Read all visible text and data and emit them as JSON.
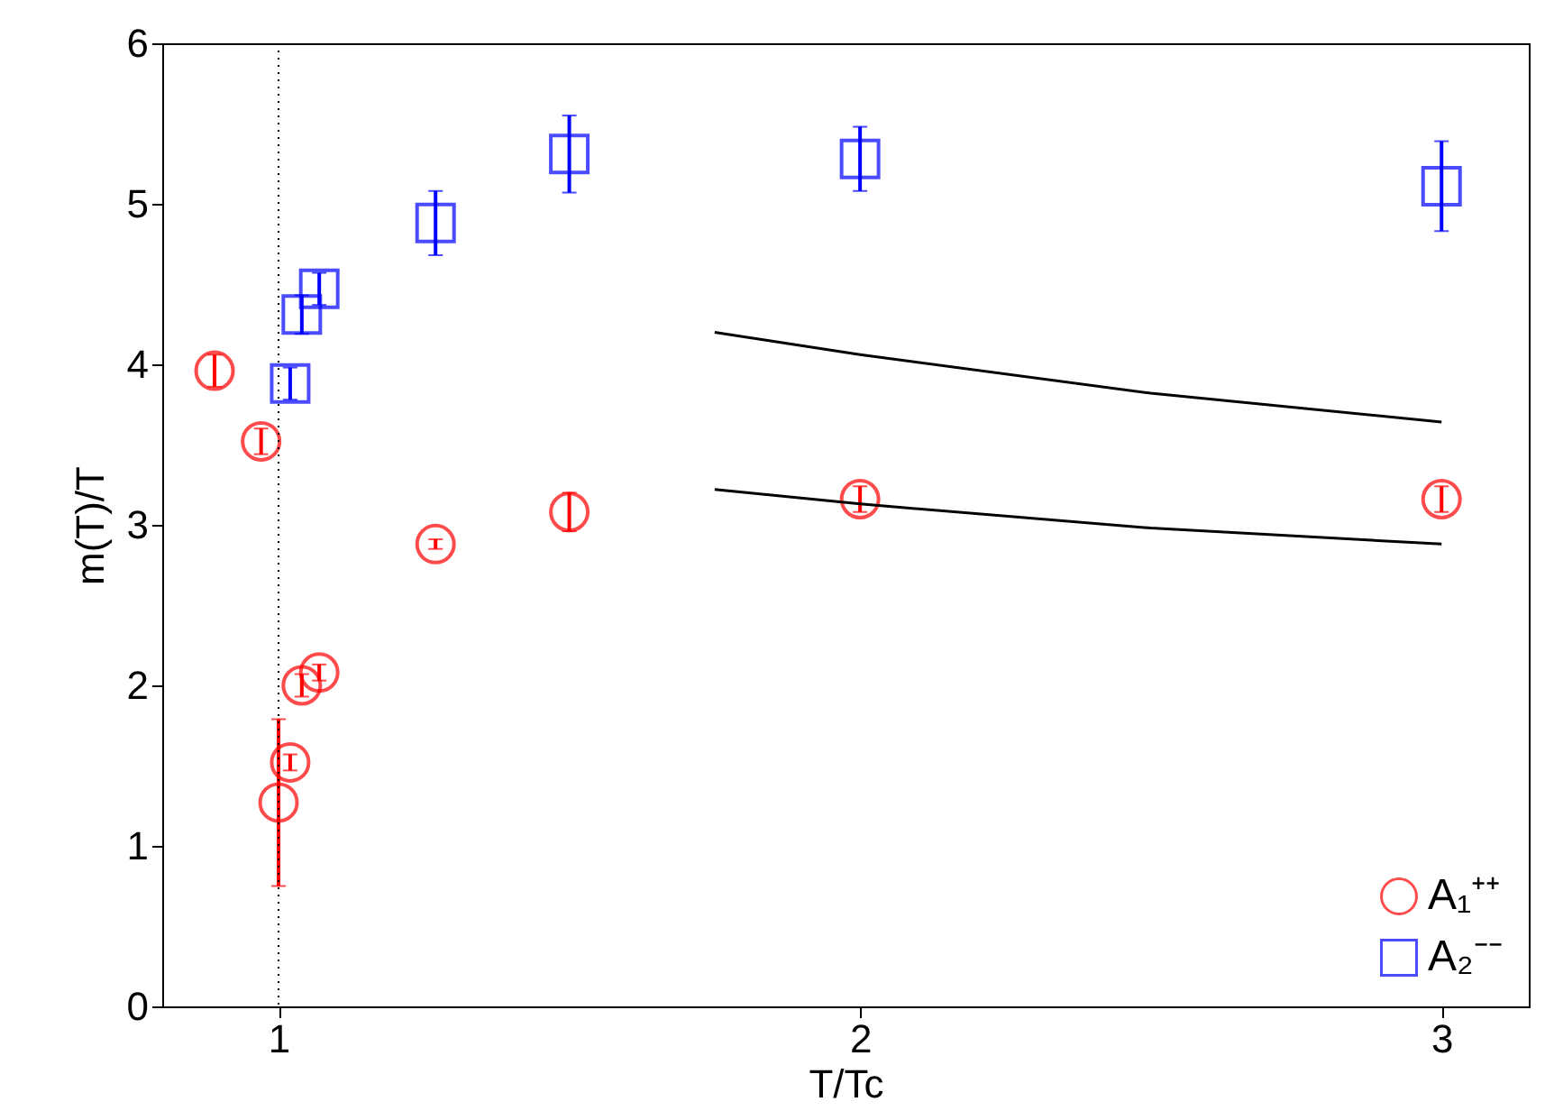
{
  "chart_data": {
    "type": "scatter",
    "xlabel": "T/Tc",
    "ylabel": "m(T)/T",
    "xlim": [
      0.8,
      3.15
    ],
    "ylim": [
      0,
      6
    ],
    "xticks": [
      1,
      2,
      3
    ],
    "yticks": [
      0,
      1,
      2,
      3,
      4,
      5,
      6
    ],
    "grid": false,
    "legend": "bottom right",
    "series": [
      {
        "name": "A₁⁺⁺",
        "color": "#ff0000",
        "marker": "circle",
        "x": [
          0.89,
          0.97,
          1.0,
          1.02,
          1.04,
          1.07,
          1.27,
          1.5,
          2.0,
          3.0
        ],
        "values": [
          3.96,
          3.52,
          1.27,
          1.52,
          2.0,
          2.08,
          2.88,
          3.08,
          3.16,
          3.16
        ],
        "errors": [
          0.1,
          0.08,
          0.52,
          0.05,
          0.07,
          0.05,
          0.03,
          0.12,
          0.08,
          0.08
        ]
      },
      {
        "name": "A₂⁻⁻",
        "color": "#0000ff",
        "marker": "square",
        "x": [
          1.02,
          1.04,
          1.07,
          1.27,
          1.5,
          2.0,
          3.0
        ],
        "values": [
          3.88,
          4.31,
          4.47,
          4.88,
          5.31,
          5.28,
          5.11
        ],
        "errors": [
          0.1,
          0.12,
          0.1,
          0.2,
          0.24,
          0.2,
          0.28
        ]
      },
      {
        "type": "line",
        "color": "#000000",
        "x": [
          1.75,
          2.0,
          2.5,
          3.0
        ],
        "values": [
          4.2,
          4.06,
          3.82,
          3.64
        ]
      },
      {
        "type": "line",
        "color": "#000000",
        "x": [
          1.75,
          2.0,
          2.5,
          3.0
        ],
        "values": [
          3.22,
          3.13,
          2.98,
          2.88
        ]
      }
    ],
    "ref_lines": [
      {
        "axis": "x",
        "value": 1,
        "color": "#000000",
        "line_style": "dotted"
      }
    ]
  }
}
